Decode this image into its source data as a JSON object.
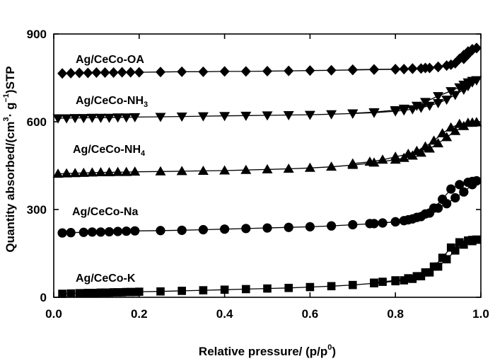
{
  "chart_data": {
    "type": "line",
    "xlabel": "Relative pressure/ (p/p⁰)",
    "xlabel_main": "Relative pressure/ (p/p",
    "xlabel_sup": "0",
    "xlabel_tail": ")",
    "ylabel": "Quantity absorbed/(cm³· g⁻¹)STP",
    "ylabel_a": "Quantity absorbed/(cm",
    "ylabel_sup1": "3",
    "ylabel_b": "· g",
    "ylabel_sup2": "−1",
    "ylabel_c": ")STP",
    "xlim": [
      0.0,
      1.0
    ],
    "ylim": [
      0,
      900
    ],
    "xticks": [
      "0.0",
      "0.2",
      "0.4",
      "0.6",
      "0.8",
      "1.0"
    ],
    "yticks": [
      "0",
      "300",
      "600",
      "900"
    ],
    "grid": false,
    "legend": "none (series labelled directly above each curve)",
    "series": [
      {
        "name": "Ag/CeCo-OA",
        "name_main": "Ag/CeCo-OA",
        "name_sub": "",
        "marker": "diamond",
        "adsorption": [
          [
            0.02,
            765
          ],
          [
            0.04,
            766
          ],
          [
            0.06,
            767
          ],
          [
            0.08,
            767
          ],
          [
            0.1,
            768
          ],
          [
            0.12,
            768
          ],
          [
            0.14,
            768
          ],
          [
            0.16,
            769
          ],
          [
            0.18,
            769
          ],
          [
            0.2,
            769
          ],
          [
            0.25,
            770
          ],
          [
            0.3,
            771
          ],
          [
            0.35,
            771
          ],
          [
            0.4,
            772
          ],
          [
            0.45,
            772
          ],
          [
            0.5,
            773
          ],
          [
            0.55,
            774
          ],
          [
            0.6,
            775
          ],
          [
            0.65,
            776
          ],
          [
            0.7,
            777
          ],
          [
            0.75,
            778
          ],
          [
            0.8,
            779
          ],
          [
            0.82,
            780
          ],
          [
            0.84,
            781
          ],
          [
            0.86,
            782
          ],
          [
            0.88,
            784
          ],
          [
            0.9,
            787
          ],
          [
            0.92,
            792
          ],
          [
            0.94,
            800
          ],
          [
            0.96,
            815
          ],
          [
            0.97,
            830
          ],
          [
            0.98,
            845
          ],
          [
            0.99,
            852
          ]
        ],
        "desorption": [
          [
            0.99,
            852
          ],
          [
            0.98,
            848
          ],
          [
            0.97,
            840
          ],
          [
            0.96,
            828
          ],
          [
            0.95,
            815
          ],
          [
            0.93,
            795
          ],
          [
            0.9,
            788
          ],
          [
            0.87,
            784
          ],
          [
            0.84,
            782
          ],
          [
            0.8,
            780
          ],
          [
            0.75,
            779
          ],
          [
            0.7,
            778
          ]
        ]
      },
      {
        "name": "Ag/CeCo-NH3",
        "name_main": "Ag/CeCo-NH",
        "name_sub": "3",
        "marker": "triangle-down",
        "adsorption": [
          [
            0.01,
            612
          ],
          [
            0.03,
            612
          ],
          [
            0.05,
            613
          ],
          [
            0.07,
            613
          ],
          [
            0.09,
            614
          ],
          [
            0.11,
            614
          ],
          [
            0.13,
            614
          ],
          [
            0.15,
            615
          ],
          [
            0.17,
            615
          ],
          [
            0.19,
            616
          ],
          [
            0.25,
            617
          ],
          [
            0.3,
            618
          ],
          [
            0.35,
            619
          ],
          [
            0.4,
            620
          ],
          [
            0.45,
            621
          ],
          [
            0.5,
            622
          ],
          [
            0.55,
            623
          ],
          [
            0.6,
            624
          ],
          [
            0.65,
            626
          ],
          [
            0.7,
            628
          ],
          [
            0.75,
            631
          ],
          [
            0.8,
            636
          ],
          [
            0.82,
            639
          ],
          [
            0.84,
            643
          ],
          [
            0.86,
            648
          ],
          [
            0.88,
            655
          ],
          [
            0.9,
            664
          ],
          [
            0.92,
            676
          ],
          [
            0.94,
            692
          ],
          [
            0.96,
            710
          ],
          [
            0.97,
            722
          ],
          [
            0.98,
            735
          ],
          [
            0.99,
            742
          ]
        ],
        "desorption": [
          [
            0.99,
            742
          ],
          [
            0.98,
            740
          ],
          [
            0.97,
            735
          ],
          [
            0.96,
            727
          ],
          [
            0.95,
            718
          ],
          [
            0.93,
            705
          ],
          [
            0.9,
            688
          ],
          [
            0.87,
            668
          ],
          [
            0.85,
            655
          ],
          [
            0.82,
            645
          ],
          [
            0.8,
            640
          ],
          [
            0.75,
            633
          ],
          [
            0.7,
            629
          ]
        ]
      },
      {
        "name": "Ag/CeCo-NH4",
        "name_main": "Ag/CeCo-NH",
        "name_sub": "4",
        "marker": "triangle-up",
        "adsorption": [
          [
            0.01,
            422
          ],
          [
            0.03,
            423
          ],
          [
            0.05,
            424
          ],
          [
            0.07,
            425
          ],
          [
            0.09,
            426
          ],
          [
            0.11,
            427
          ],
          [
            0.13,
            427
          ],
          [
            0.15,
            428
          ],
          [
            0.17,
            428
          ],
          [
            0.19,
            429
          ],
          [
            0.25,
            430
          ],
          [
            0.3,
            431
          ],
          [
            0.35,
            432
          ],
          [
            0.4,
            433
          ],
          [
            0.45,
            435
          ],
          [
            0.5,
            437
          ],
          [
            0.55,
            439
          ],
          [
            0.6,
            442
          ],
          [
            0.65,
            446
          ],
          [
            0.7,
            452
          ],
          [
            0.75,
            460
          ],
          [
            0.8,
            470
          ],
          [
            0.82,
            476
          ],
          [
            0.84,
            484
          ],
          [
            0.86,
            494
          ],
          [
            0.88,
            508
          ],
          [
            0.9,
            526
          ],
          [
            0.92,
            547
          ],
          [
            0.94,
            568
          ],
          [
            0.96,
            585
          ],
          [
            0.98,
            596
          ],
          [
            0.99,
            598
          ]
        ],
        "desorption": [
          [
            0.99,
            598
          ],
          [
            0.98,
            597
          ],
          [
            0.97,
            596
          ],
          [
            0.95,
            592
          ],
          [
            0.93,
            580
          ],
          [
            0.91,
            560
          ],
          [
            0.89,
            535
          ],
          [
            0.87,
            515
          ],
          [
            0.85,
            500
          ],
          [
            0.83,
            490
          ],
          [
            0.8,
            480
          ],
          [
            0.77,
            470
          ],
          [
            0.74,
            463
          ],
          [
            0.7,
            457
          ]
        ]
      },
      {
        "name": "Ag/CeCo-Na",
        "name_main": "Ag/CeCo-Na",
        "name_sub": "",
        "marker": "circle",
        "adsorption": [
          [
            0.02,
            220
          ],
          [
            0.04,
            221
          ],
          [
            0.07,
            222
          ],
          [
            0.09,
            223
          ],
          [
            0.11,
            223
          ],
          [
            0.13,
            224
          ],
          [
            0.15,
            225
          ],
          [
            0.17,
            226
          ],
          [
            0.19,
            227
          ],
          [
            0.25,
            228
          ],
          [
            0.3,
            229
          ],
          [
            0.35,
            231
          ],
          [
            0.4,
            233
          ],
          [
            0.45,
            235
          ],
          [
            0.5,
            237
          ],
          [
            0.55,
            239
          ],
          [
            0.6,
            241
          ],
          [
            0.65,
            244
          ],
          [
            0.7,
            248
          ],
          [
            0.75,
            252
          ],
          [
            0.8,
            258
          ],
          [
            0.82,
            262
          ],
          [
            0.84,
            268
          ],
          [
            0.86,
            276
          ],
          [
            0.88,
            288
          ],
          [
            0.9,
            305
          ],
          [
            0.92,
            320
          ],
          [
            0.94,
            340
          ],
          [
            0.96,
            360
          ],
          [
            0.98,
            385
          ],
          [
            0.99,
            398
          ]
        ],
        "desorption": [
          [
            0.99,
            398
          ],
          [
            0.98,
            396
          ],
          [
            0.97,
            393
          ],
          [
            0.95,
            385
          ],
          [
            0.93,
            370
          ],
          [
            0.91,
            335
          ],
          [
            0.89,
            305
          ],
          [
            0.87,
            285
          ],
          [
            0.85,
            273
          ],
          [
            0.83,
            265
          ],
          [
            0.8,
            258
          ],
          [
            0.77,
            254
          ],
          [
            0.74,
            252
          ]
        ]
      },
      {
        "name": "Ag/CeCo-K",
        "name_main": "Ag/CeCo-K",
        "name_sub": "",
        "marker": "square",
        "adsorption": [
          [
            0.02,
            12
          ],
          [
            0.04,
            13
          ],
          [
            0.06,
            14
          ],
          [
            0.07,
            14
          ],
          [
            0.08,
            15
          ],
          [
            0.09,
            15
          ],
          [
            0.1,
            15
          ],
          [
            0.11,
            16
          ],
          [
            0.12,
            16
          ],
          [
            0.13,
            16
          ],
          [
            0.14,
            17
          ],
          [
            0.15,
            17
          ],
          [
            0.16,
            17
          ],
          [
            0.17,
            18
          ],
          [
            0.18,
            18
          ],
          [
            0.19,
            18
          ],
          [
            0.2,
            19
          ],
          [
            0.25,
            20
          ],
          [
            0.3,
            22
          ],
          [
            0.35,
            24
          ],
          [
            0.4,
            26
          ],
          [
            0.45,
            28
          ],
          [
            0.5,
            30
          ],
          [
            0.55,
            32
          ],
          [
            0.6,
            35
          ],
          [
            0.65,
            38
          ],
          [
            0.7,
            42
          ],
          [
            0.75,
            48
          ],
          [
            0.8,
            55
          ],
          [
            0.82,
            58
          ],
          [
            0.84,
            63
          ],
          [
            0.86,
            72
          ],
          [
            0.88,
            85
          ],
          [
            0.9,
            105
          ],
          [
            0.92,
            130
          ],
          [
            0.94,
            160
          ],
          [
            0.96,
            180
          ],
          [
            0.98,
            192
          ],
          [
            0.99,
            197
          ]
        ],
        "desorption": [
          [
            0.99,
            197
          ],
          [
            0.98,
            196
          ],
          [
            0.97,
            194
          ],
          [
            0.95,
            188
          ],
          [
            0.93,
            170
          ],
          [
            0.91,
            135
          ],
          [
            0.89,
            105
          ],
          [
            0.87,
            85
          ],
          [
            0.85,
            72
          ],
          [
            0.83,
            65
          ],
          [
            0.8,
            58
          ],
          [
            0.77,
            53
          ],
          [
            0.75,
            50
          ]
        ]
      }
    ]
  }
}
